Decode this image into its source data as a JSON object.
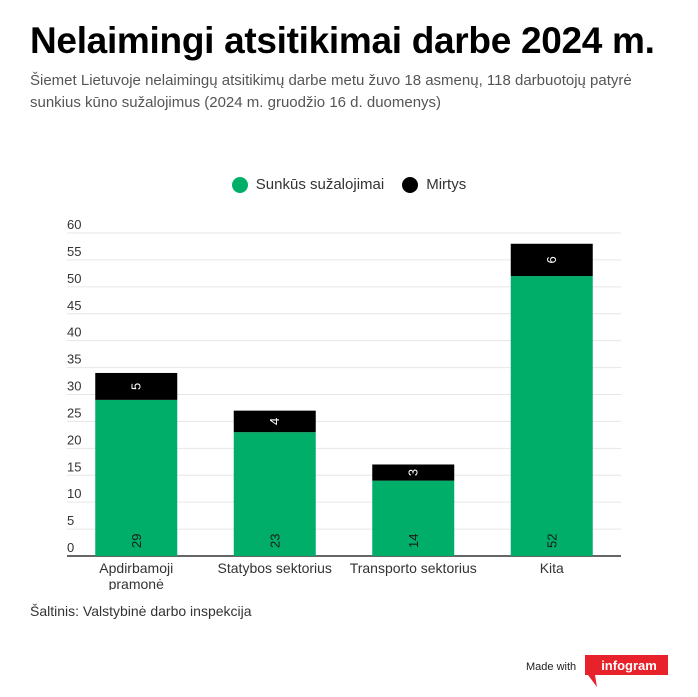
{
  "title": "Nelaimingi atsitikimai darbe 2024 m.",
  "subtitle": "Šiemet Lietuvoje nelaimingų atsitikimų darbe metu žuvo 18 asmenų, 118 darbuotojų patyrė sunkius kūno sužalojimus (2024 m. gruodžio 16 d. duomenys)",
  "source": "Šaltinis: Valstybinė darbo inspekcija",
  "footer": {
    "made_with": "Made with",
    "brand": "infogram"
  },
  "colors": {
    "injuries": "#00AE6A",
    "deaths": "#000000",
    "brand": "#E8222A"
  },
  "chart_data": {
    "type": "bar",
    "stacked": true,
    "categories": [
      [
        "Apdirbamoji",
        "pramonė"
      ],
      [
        "Statybos sektorius"
      ],
      [
        "Transporto sektorius"
      ],
      [
        "Kita"
      ]
    ],
    "series": [
      {
        "name": "Sunkūs sužalojimai",
        "values": [
          29,
          23,
          14,
          52
        ],
        "color": "#00AE6A"
      },
      {
        "name": "Mirtys",
        "values": [
          5,
          4,
          3,
          6
        ],
        "color": "#000000"
      }
    ],
    "ylim": [
      0,
      60
    ],
    "yticks": [
      0,
      5,
      10,
      15,
      20,
      25,
      30,
      35,
      40,
      45,
      50,
      55,
      60
    ],
    "grid": true,
    "legend_position": "top-center",
    "xlabel": "",
    "ylabel": ""
  }
}
